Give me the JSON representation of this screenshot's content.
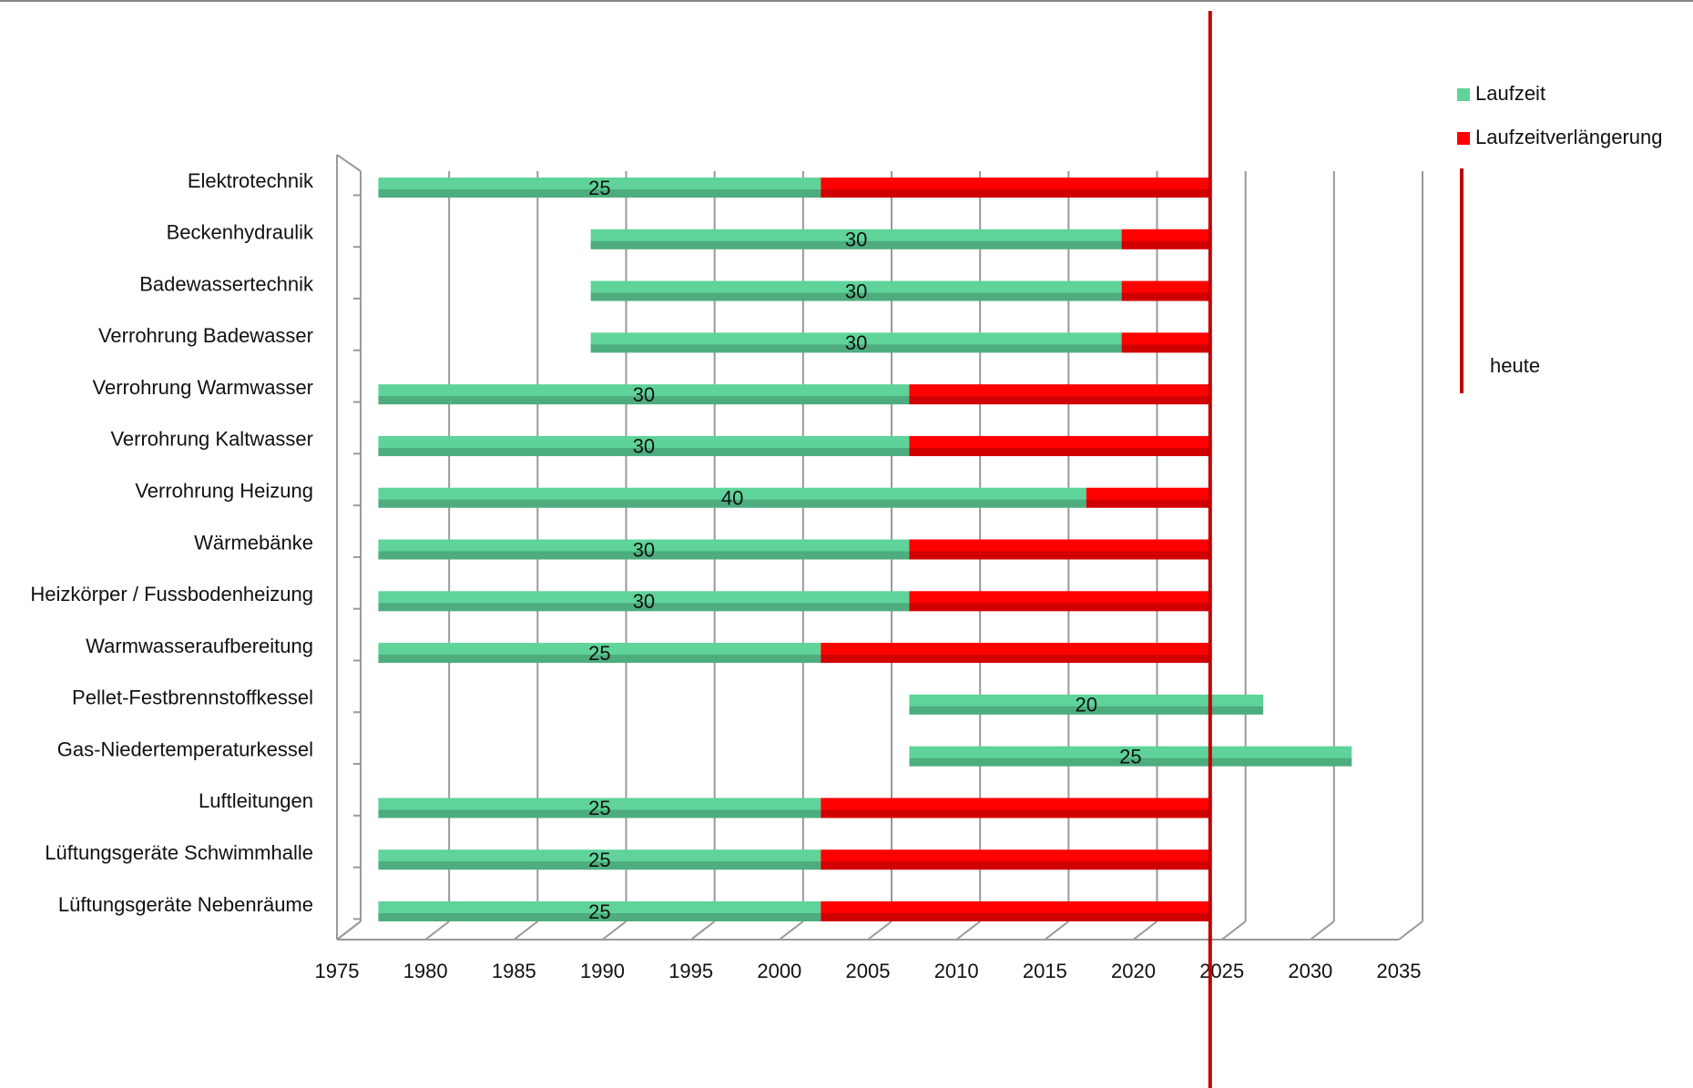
{
  "chart_data": {
    "type": "bar",
    "categories": [
      "Elektrotechnik",
      "Beckenhydraulik",
      "Badewassertechnik",
      "Verrohrung Badewasser",
      "Verrohrung Warmwasser",
      "Verrohrung Kaltwasser",
      "Verrohrung Heizung",
      "Wärmebänke",
      "Heizkörper / Fussbodenheizung",
      "Warmwasseraufbereitung",
      "Pellet-Festbrennstoffkessel",
      "Gas-Niedertemperaturkessel",
      "Luftleitungen",
      "Lüftungsgeräte Schwimmhalle",
      "Lüftungsgeräte Nebenräume"
    ],
    "start": [
      1976,
      1988,
      1988,
      1988,
      1976,
      1976,
      1976,
      1976,
      1976,
      1976,
      2006,
      2006,
      1976,
      1976,
      1976
    ],
    "series": [
      {
        "name": "Laufzeit",
        "color": "#5fd39a",
        "values": [
          25,
          30,
          30,
          30,
          30,
          30,
          40,
          30,
          30,
          25,
          20,
          25,
          25,
          25,
          25
        ]
      },
      {
        "name": "Laufzeitverlängerung",
        "color": "#ff0000",
        "values": [
          22,
          5,
          5,
          5,
          17,
          17,
          7,
          17,
          17,
          22,
          0,
          0,
          22,
          22,
          22
        ]
      }
    ],
    "today_line": {
      "name": "heute",
      "value": 2023,
      "color": "#c00000"
    },
    "xlim": [
      1975,
      2035
    ],
    "xticks": [
      1975,
      1980,
      1985,
      1990,
      1995,
      2000,
      2005,
      2010,
      2015,
      2020,
      2025,
      2030,
      2035
    ],
    "grid": true,
    "legend": "right"
  }
}
